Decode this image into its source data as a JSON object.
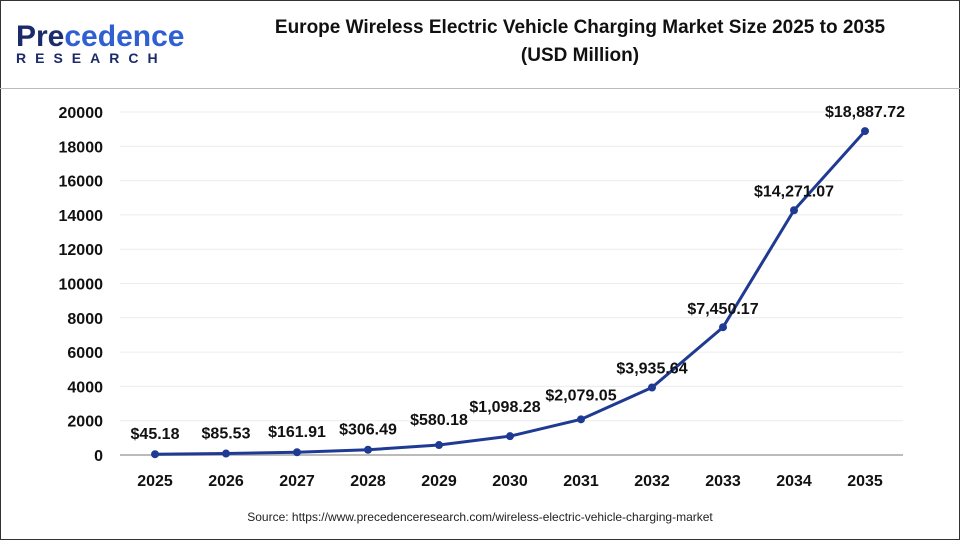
{
  "logo": {
    "main": "Precedence",
    "sub": "RESEARCH"
  },
  "chart_data": {
    "type": "line",
    "title": "Europe Wireless Electric Vehicle Charging Market Size 2025 to 2035",
    "subtitle": "(USD Million)",
    "categories": [
      "2025",
      "2026",
      "2027",
      "2028",
      "2029",
      "2030",
      "2031",
      "2032",
      "2033",
      "2034",
      "2035"
    ],
    "values": [
      45.18,
      85.53,
      161.91,
      306.49,
      580.18,
      1098.28,
      2079.05,
      3935.64,
      7450.17,
      14271.07,
      18887.72
    ],
    "labels": [
      "$45.18",
      "$85.53",
      "$161.91",
      "$306.49",
      "$580.18",
      "$1,098.28",
      "$2,079.05",
      "$3,935.64",
      "$7,450.17",
      "$14,271.07",
      "$18,887.72"
    ],
    "yticks": [
      0,
      2000,
      4000,
      6000,
      8000,
      10000,
      12000,
      14000,
      16000,
      18000,
      20000
    ],
    "ylim": [
      0,
      20000
    ],
    "grid": true,
    "line_color": "#1f3a93"
  },
  "source": "Source: https://www.precedenceresearch.com/wireless-electric-vehicle-charging-market"
}
